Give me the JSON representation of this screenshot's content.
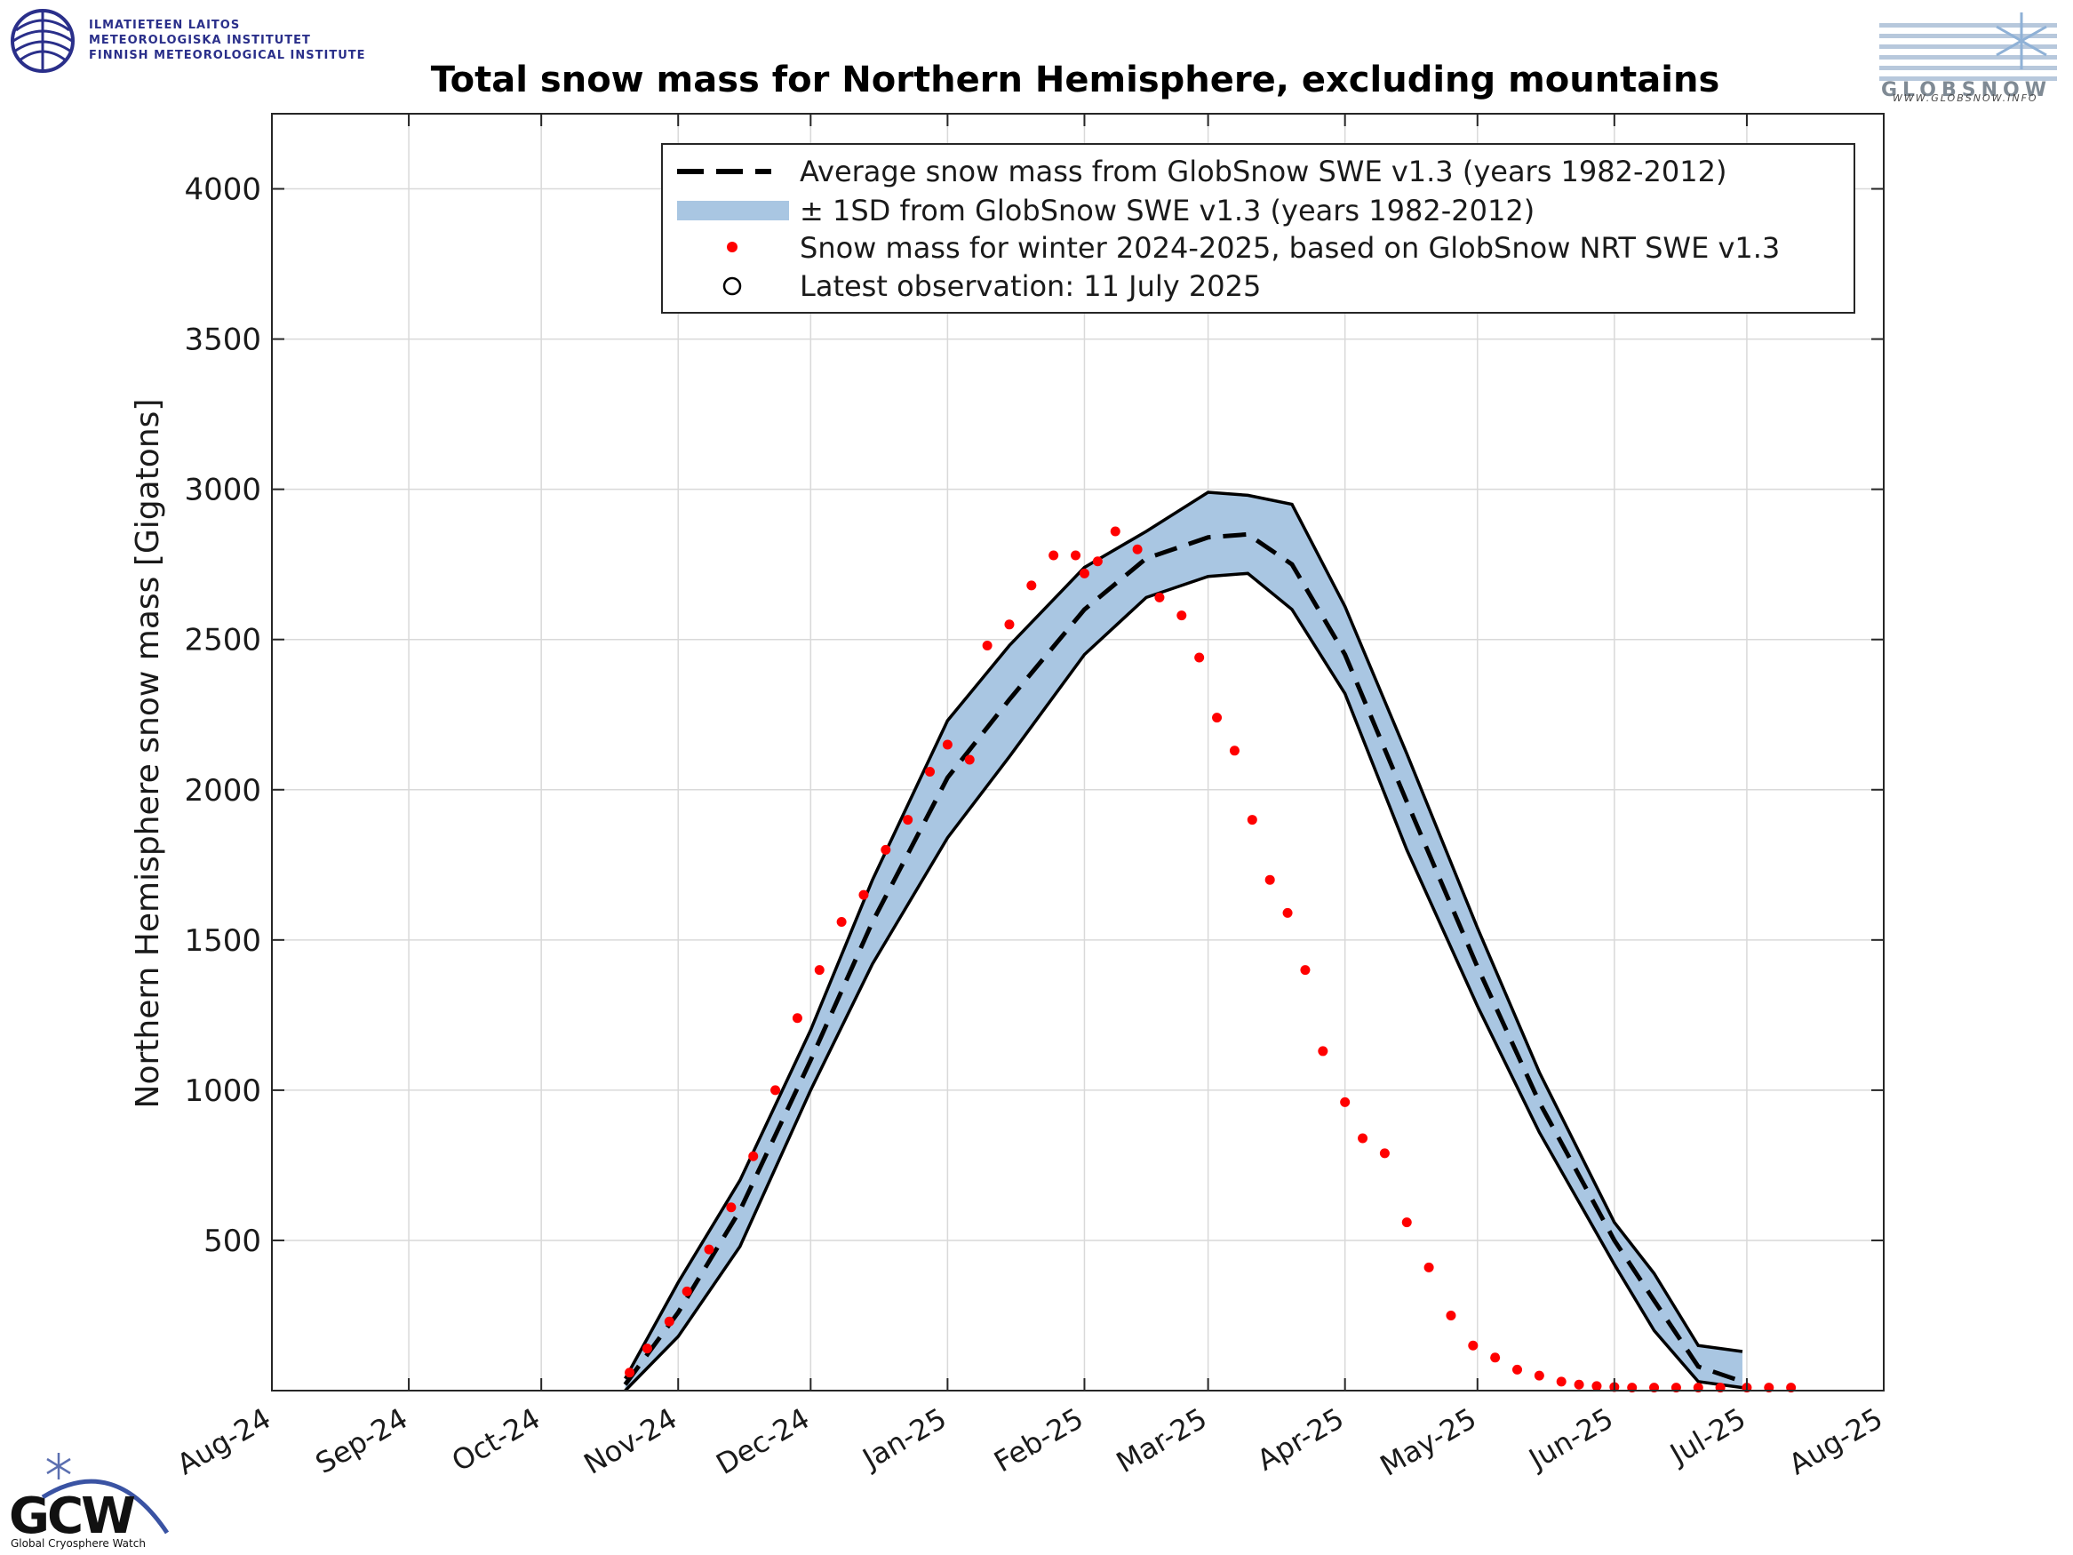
{
  "logos": {
    "fmi_lines": [
      "ILMATIETEEN LAITOS",
      "METEOROLOGISKA INSTITUTET",
      "FINNISH METEOROLOGICAL INSTITUTE"
    ],
    "globsnow_url": "WWW.GLOBSNOW.INFO",
    "gcw_name": "Global Cryosphere Watch",
    "gcw_mark": "GCW"
  },
  "colors": {
    "band": "#a9c6e2",
    "observations": "#ff0000",
    "average": "#000000",
    "grid": "#d9d9d9"
  },
  "chart_data": {
    "type": "line",
    "title": "Total snow mass for Northern Hemisphere, excluding mountains",
    "ylabel": "Northern Hemisphere snow mass [Gigatons]",
    "xlabel": "",
    "x_ticks": [
      "Aug-24",
      "Sep-24",
      "Oct-24",
      "Nov-24",
      "Dec-24",
      "Jan-25",
      "Feb-25",
      "Mar-25",
      "Apr-25",
      "May-25",
      "Jun-25",
      "Jul-25",
      "Aug-25"
    ],
    "xlim": [
      "2024-08-01",
      "2025-08-01"
    ],
    "ylim": [
      0,
      4250
    ],
    "y_ticks": [
      500,
      1000,
      1500,
      2000,
      2500,
      3000,
      3500,
      4000
    ],
    "grid": true,
    "legend_position": "top-right",
    "legend": [
      "Average snow mass from GlobSnow SWE v1.3 (years 1982-2012)",
      "± 1SD from GlobSnow SWE v1.3 (years 1982-2012)",
      "Snow mass for winter 2024-2025, based on GlobSnow NRT SWE v1.3",
      "Latest observation: 11 July 2025"
    ],
    "series": [
      {
        "name": "Average snow mass from GlobSnow SWE v1.3 (years 1982-2012)",
        "style": "dashed",
        "x": [
          "2024-10-20",
          "2024-11-01",
          "2024-11-15",
          "2024-12-01",
          "2024-12-15",
          "2025-01-01",
          "2025-01-15",
          "2025-02-01",
          "2025-02-15",
          "2025-03-01",
          "2025-03-10",
          "2025-03-20",
          "2025-04-01",
          "2025-04-15",
          "2025-05-01",
          "2025-05-15",
          "2025-06-01",
          "2025-06-10",
          "2025-06-20",
          "2025-06-30"
        ],
        "values": [
          20,
          260,
          600,
          1100,
          1560,
          2040,
          2300,
          2600,
          2770,
          2840,
          2850,
          2750,
          2450,
          1960,
          1410,
          960,
          500,
          300,
          80,
          30
        ]
      },
      {
        "name": "± 1SD upper",
        "x": [
          "2024-10-20",
          "2024-11-01",
          "2024-11-15",
          "2024-12-01",
          "2024-12-15",
          "2025-01-01",
          "2025-01-15",
          "2025-02-01",
          "2025-02-15",
          "2025-03-01",
          "2025-03-10",
          "2025-03-20",
          "2025-04-01",
          "2025-04-15",
          "2025-05-01",
          "2025-05-15",
          "2025-06-01",
          "2025-06-10",
          "2025-06-20",
          "2025-06-30"
        ],
        "values": [
          40,
          360,
          700,
          1200,
          1700,
          2230,
          2480,
          2740,
          2860,
          2990,
          2980,
          2950,
          2610,
          2120,
          1540,
          1060,
          560,
          390,
          150,
          130
        ]
      },
      {
        "name": "± 1SD lower",
        "x": [
          "2024-10-20",
          "2024-11-01",
          "2024-11-15",
          "2024-12-01",
          "2024-12-15",
          "2025-01-01",
          "2025-01-15",
          "2025-02-01",
          "2025-02-15",
          "2025-03-01",
          "2025-03-10",
          "2025-03-20",
          "2025-04-01",
          "2025-04-15",
          "2025-05-01",
          "2025-05-15",
          "2025-06-01",
          "2025-06-10",
          "2025-06-20",
          "2025-06-30"
        ],
        "values": [
          0,
          180,
          480,
          1000,
          1420,
          1840,
          2110,
          2450,
          2640,
          2710,
          2720,
          2600,
          2320,
          1800,
          1280,
          860,
          420,
          200,
          30,
          10
        ]
      },
      {
        "name": "Snow mass for winter 2024-2025, based on GlobSnow NRT SWE v1.3",
        "style": "dots",
        "x": [
          "2024-10-21",
          "2024-10-25",
          "2024-10-30",
          "2024-11-03",
          "2024-11-08",
          "2024-11-13",
          "2024-11-18",
          "2024-11-23",
          "2024-11-28",
          "2024-12-03",
          "2024-12-08",
          "2024-12-13",
          "2024-12-18",
          "2024-12-23",
          "2024-12-28",
          "2025-01-01",
          "2025-01-06",
          "2025-01-10",
          "2025-01-15",
          "2025-01-20",
          "2025-01-25",
          "2025-01-30",
          "2025-02-01",
          "2025-02-04",
          "2025-02-08",
          "2025-02-13",
          "2025-02-18",
          "2025-02-23",
          "2025-02-27",
          "2025-03-03",
          "2025-03-07",
          "2025-03-11",
          "2025-03-15",
          "2025-03-19",
          "2025-03-23",
          "2025-03-27",
          "2025-04-01",
          "2025-04-05",
          "2025-04-10",
          "2025-04-15",
          "2025-04-20",
          "2025-04-25",
          "2025-04-30",
          "2025-05-05",
          "2025-05-10",
          "2025-05-15",
          "2025-05-20",
          "2025-05-24",
          "2025-05-28",
          "2025-06-01",
          "2025-06-05",
          "2025-06-10",
          "2025-06-15",
          "2025-06-20",
          "2025-06-25",
          "2025-07-01",
          "2025-07-06",
          "2025-07-11"
        ],
        "values": [
          60,
          140,
          230,
          330,
          470,
          610,
          780,
          1000,
          1240,
          1400,
          1560,
          1650,
          1800,
          1900,
          2060,
          2150,
          2100,
          2480,
          2550,
          2680,
          2780,
          2780,
          2720,
          2760,
          2860,
          2800,
          2640,
          2580,
          2440,
          2240,
          2130,
          1900,
          1700,
          1590,
          1400,
          1130,
          960,
          840,
          790,
          560,
          410,
          250,
          150,
          110,
          70,
          50,
          30,
          20,
          15,
          12,
          10,
          10,
          10,
          10,
          10,
          10,
          10,
          10
        ]
      }
    ]
  }
}
